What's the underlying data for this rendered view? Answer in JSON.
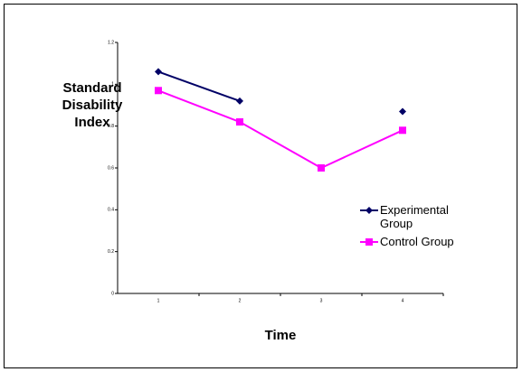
{
  "chart_data": {
    "type": "line",
    "y_label": "Standard Disability Index",
    "x_label": "Time",
    "categories": [
      "1",
      "2",
      "3",
      "4"
    ],
    "series": [
      {
        "name": "Experimental Group",
        "color": "#000066",
        "marker": "diamond",
        "values": [
          1.06,
          0.92,
          null,
          0.87
        ]
      },
      {
        "name": "Control Group",
        "color": "#ff00ff",
        "marker": "square",
        "values": [
          0.97,
          0.82,
          0.6,
          0.78
        ]
      }
    ],
    "ylim": [
      0,
      1.2
    ],
    "yticks": [
      0,
      0.2,
      0.4,
      0.6,
      0.8,
      1,
      1.2
    ]
  }
}
